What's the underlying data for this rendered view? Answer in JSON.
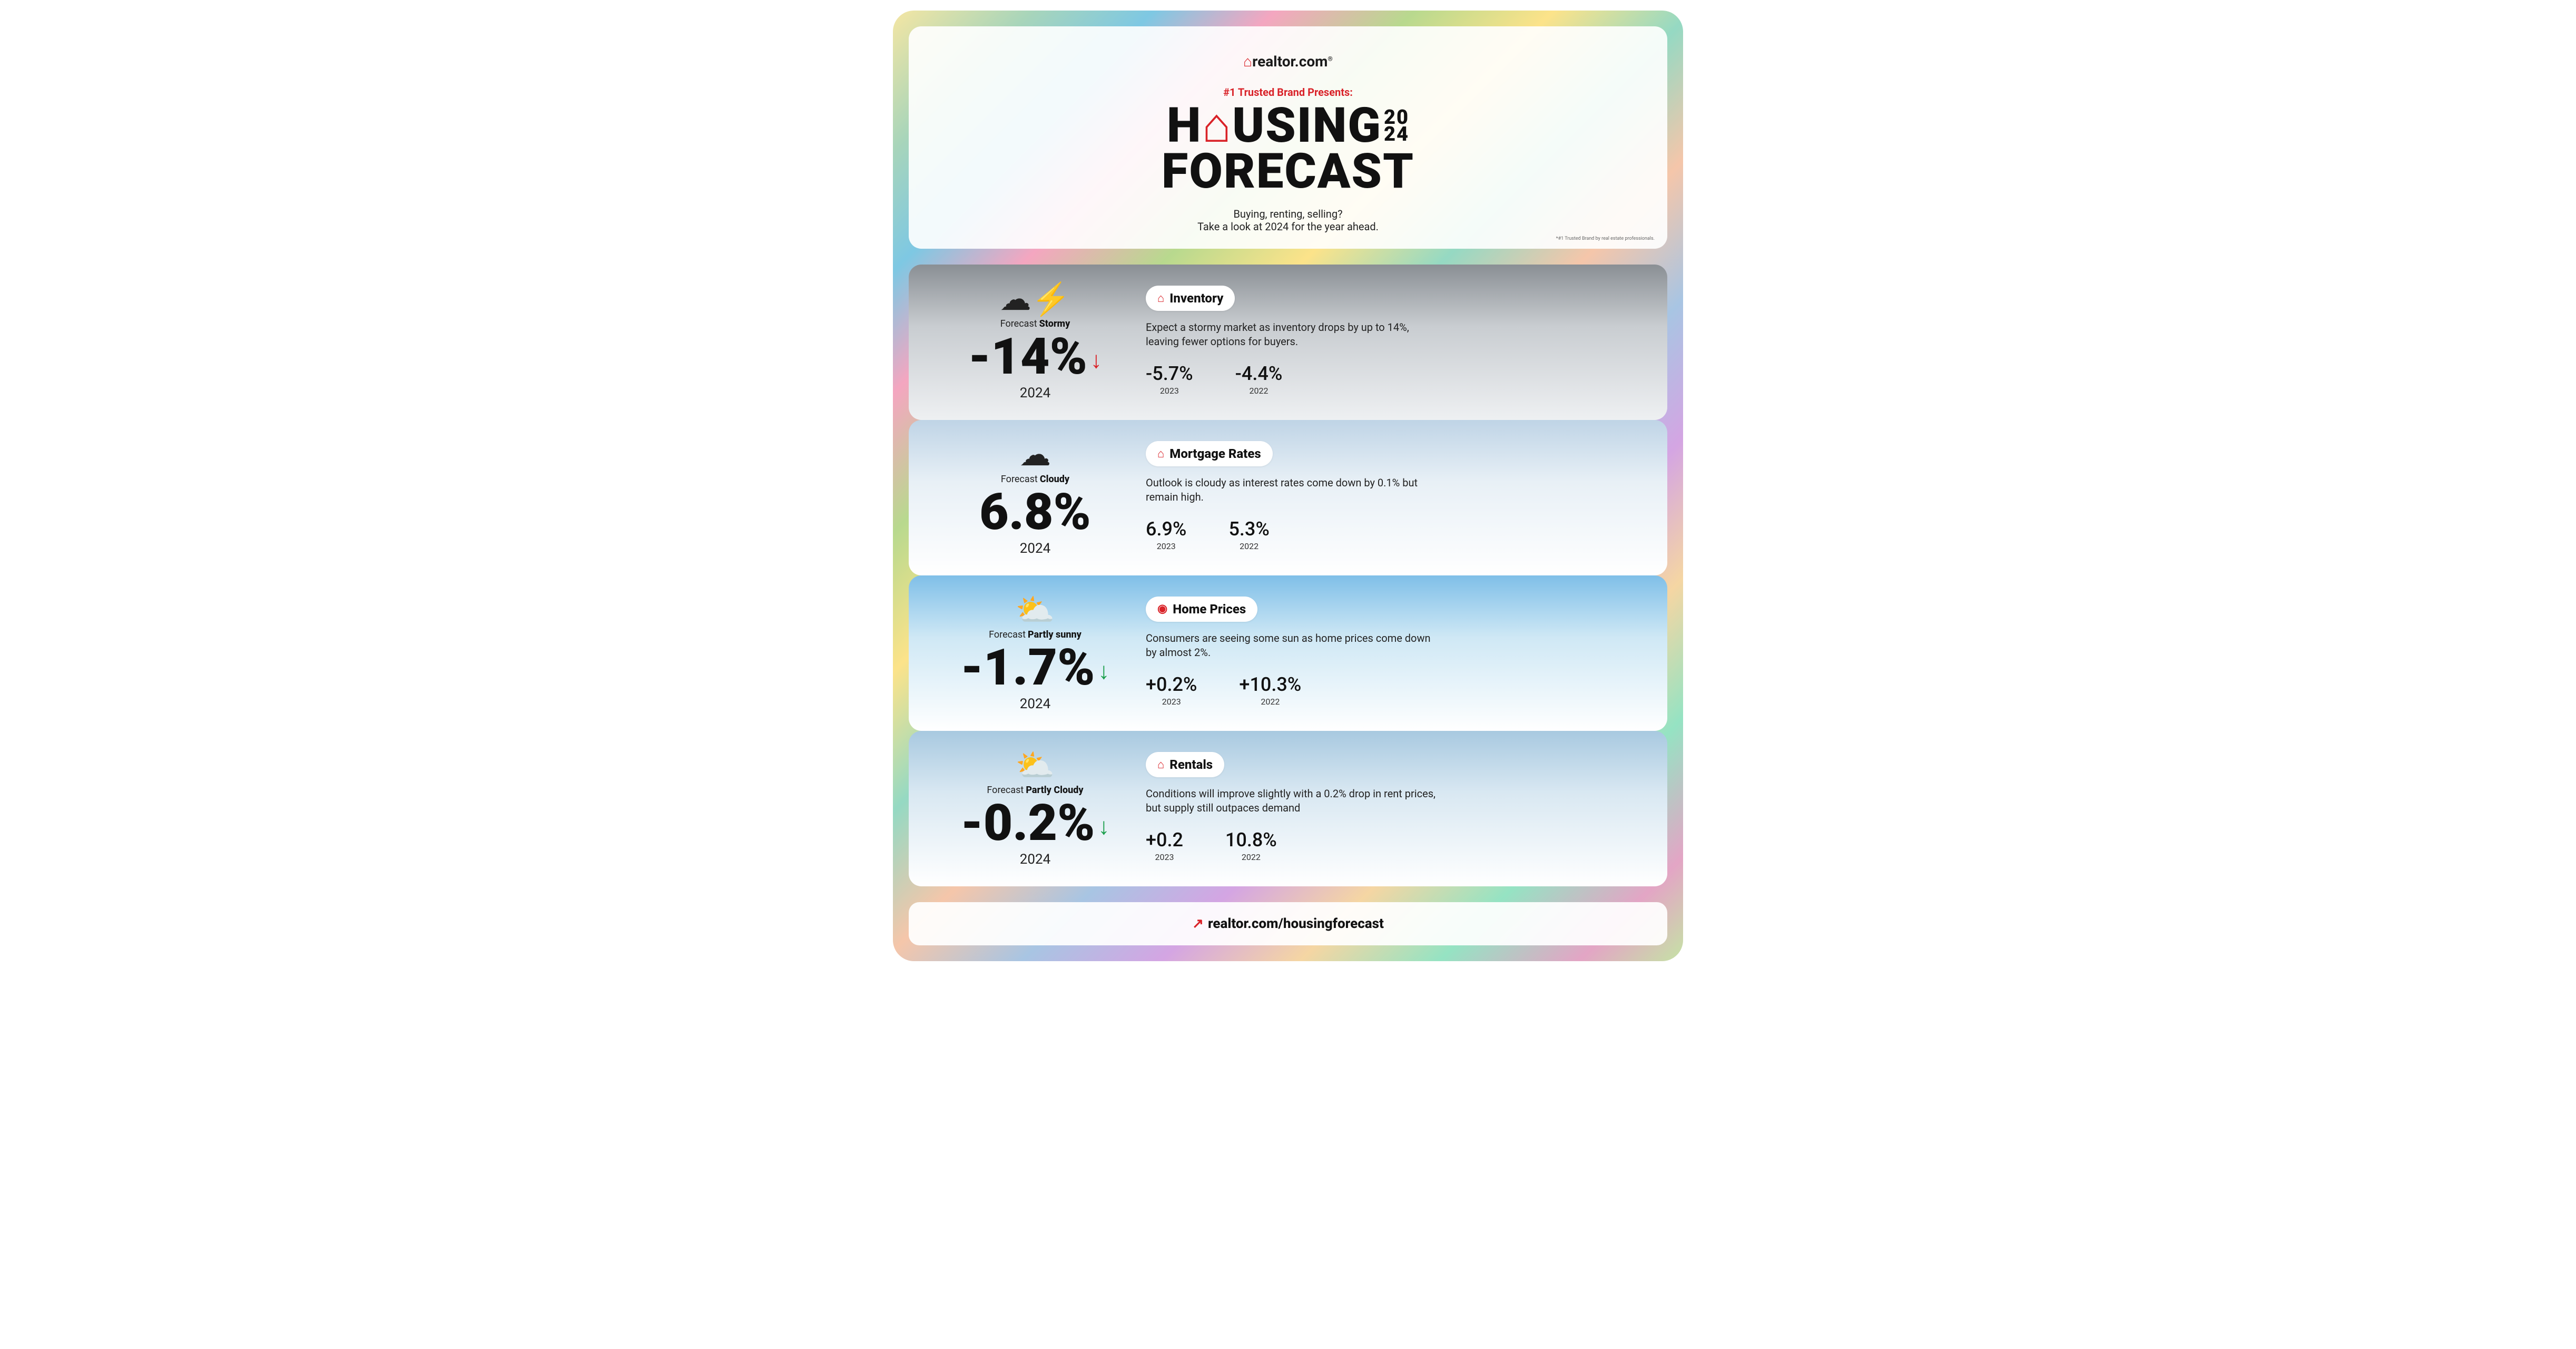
{
  "brand": {
    "logo_text": "realtor.com",
    "house_glyph": "⌂"
  },
  "header": {
    "presents": "#1 Trusted Brand Presents:",
    "title_line1_a": "H",
    "title_line1_b": "USING",
    "title_year_top": "20",
    "title_year_bot": "24",
    "title_line2": "FORECAST",
    "sub1": "Buying, renting, selling?",
    "sub2": "Take a look at 2024 for the year ahead.",
    "legal": "*#1 Trusted Brand by real estate professionals."
  },
  "cards": [
    {
      "bg_class": "card-stormy",
      "icon": "☁︎⚡",
      "forecast_word": "Forecast",
      "forecast_value": "Stormy",
      "big_stat": "-14%",
      "arrow": "down-red",
      "year": "2024",
      "topic_icon": "⌂",
      "topic": "Inventory",
      "desc": "Expect a stormy market as inventory drops by up to 14%, leaving fewer options for buyers.",
      "hist": [
        {
          "val": "-5.7%",
          "year": "2023"
        },
        {
          "val": "-4.4%",
          "year": "2022"
        }
      ]
    },
    {
      "bg_class": "card-cloudy",
      "icon": "☁︎",
      "forecast_word": "Forecast",
      "forecast_value": "Cloudy",
      "big_stat": "6.8%",
      "arrow": "",
      "year": "2024",
      "topic_icon": "⌂",
      "topic": "Mortgage Rates",
      "desc": "Outlook is cloudy as interest rates come down by 0.1% but remain high.",
      "hist": [
        {
          "val": "6.9%",
          "year": "2023"
        },
        {
          "val": "5.3%",
          "year": "2022"
        }
      ]
    },
    {
      "bg_class": "card-sunny",
      "icon": "⛅",
      "forecast_word": "Forecast",
      "forecast_value": "Partly sunny",
      "big_stat": "-1.7%",
      "arrow": "down-green",
      "year": "2024",
      "topic_icon": "◉",
      "topic": "Home Prices",
      "desc": "Consumers are seeing some sun as home prices come down by almost 2%.",
      "hist": [
        {
          "val": "+0.2%",
          "year": "2023"
        },
        {
          "val": "+10.3%",
          "year": "2022"
        }
      ]
    },
    {
      "bg_class": "card-pcloudy",
      "icon": "⛅",
      "forecast_word": "Forecast",
      "forecast_value": "Partly Cloudy",
      "big_stat": "-0.2%",
      "arrow": "down-green",
      "year": "2024",
      "topic_icon": "⌂",
      "topic": "Rentals",
      "desc": "Conditions will improve slightly with a 0.2% drop in rent prices, but supply still outpaces demand",
      "hist": [
        {
          "val": "+0.2",
          "year": "2023"
        },
        {
          "val": "10.8%",
          "year": "2022"
        }
      ]
    }
  ],
  "footer": {
    "link_icon": "↗",
    "link_text": "realtor.com/housingforecast"
  },
  "colors": {
    "accent_red": "#d92228",
    "accent_green": "#1a9e4b",
    "text": "#111111"
  }
}
